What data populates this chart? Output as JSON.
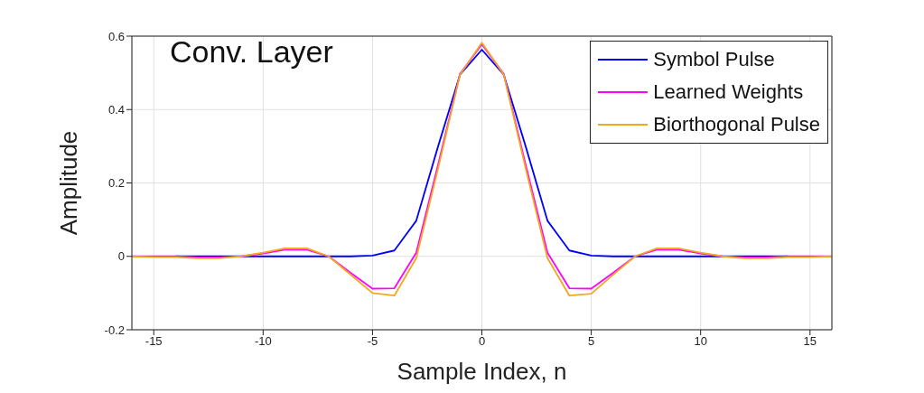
{
  "chart_data": {
    "type": "line",
    "xlabel": "Sample Index, n",
    "ylabel": "Amplitude",
    "annotations": [
      "Conv. Layer"
    ],
    "x": [
      -16,
      -15,
      -14,
      -13,
      -12,
      -11,
      -10,
      -9,
      -8,
      -7,
      -6,
      -5,
      -4,
      -3,
      -2,
      -1,
      0,
      1,
      2,
      3,
      4,
      5,
      6,
      7,
      8,
      9,
      10,
      11,
      12,
      13,
      14,
      15,
      16
    ],
    "series": [
      {
        "name": "Symbol Pulse",
        "color": "#0000ff",
        "values": [
          null,
          null,
          0,
          0,
          0,
          0,
          0,
          0,
          0,
          0,
          0,
          0.002,
          0.016,
          0.097,
          0.3,
          0.495,
          0.563,
          0.495,
          0.3,
          0.097,
          0.016,
          0.002,
          0,
          0,
          0,
          0,
          0,
          0,
          0,
          0,
          0,
          null,
          null
        ]
      },
      {
        "name": "Learned Weights",
        "color": "#ff00ff",
        "values": [
          0,
          0,
          0,
          -0.003,
          -0.003,
          0,
          0.008,
          0.018,
          0.018,
          0,
          -0.045,
          -0.088,
          -0.087,
          0.01,
          0.25,
          0.497,
          0.578,
          0.497,
          0.25,
          0.01,
          -0.087,
          -0.088,
          -0.045,
          0,
          0.018,
          0.018,
          0.008,
          0,
          -0.003,
          -0.003,
          0,
          0,
          0
        ]
      },
      {
        "name": "Biorthogonal Pulse",
        "color": "#f0a820",
        "values": [
          0,
          -0.002,
          -0.002,
          -0.005,
          -0.005,
          0,
          0.01,
          0.022,
          0.022,
          0,
          -0.05,
          -0.1,
          -0.107,
          -0.005,
          0.24,
          0.495,
          0.582,
          0.495,
          0.24,
          -0.005,
          -0.107,
          -0.102,
          -0.05,
          0,
          0.022,
          0.022,
          0.01,
          0,
          -0.005,
          -0.005,
          -0.002,
          -0.002,
          0
        ]
      }
    ],
    "xlim": [
      -16,
      16
    ],
    "xticks": [
      -15,
      -10,
      -5,
      0,
      5,
      10,
      15
    ],
    "ylim": [
      -0.2,
      0.6
    ],
    "yticks": [
      -0.2,
      0,
      0.2,
      0.4,
      0.6
    ],
    "grid": true,
    "legend": "top right",
    "marker": "none",
    "line_style": "solid"
  }
}
